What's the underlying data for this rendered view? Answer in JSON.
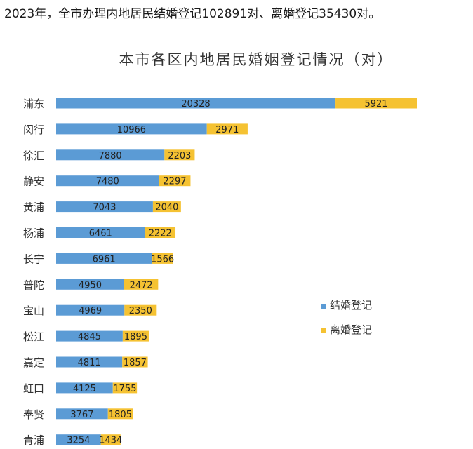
{
  "intro_text": "2023年，全市办理内地居民结婚登记102891对、离婚登记35430对。",
  "colors": {
    "marriage": "#5b9bd5",
    "divorce": "#f5c232",
    "text": "#333333"
  },
  "chart_data": {
    "type": "bar",
    "orientation": "horizontal",
    "stacked": true,
    "title": "本市各区内地居民婚姻登记情况（对）",
    "categories": [
      "浦东",
      "闵行",
      "徐汇",
      "静安",
      "黄浦",
      "杨浦",
      "长宁",
      "普陀",
      "宝山",
      "松江",
      "嘉定",
      "虹口",
      "奉贤",
      "青浦"
    ],
    "series": [
      {
        "name": "结婚登记",
        "color": "#5b9bd5",
        "values": [
          20328,
          10966,
          7880,
          7480,
          7043,
          6461,
          6961,
          4950,
          4969,
          4845,
          4811,
          4125,
          3767,
          3254
        ]
      },
      {
        "name": "离婚登记",
        "color": "#f5c232",
        "values": [
          5921,
          2971,
          2203,
          2297,
          2040,
          2222,
          1566,
          2472,
          2350,
          1895,
          1857,
          1755,
          1805,
          1434
        ]
      }
    ],
    "xlim": [
      0,
      26249
    ],
    "grid": false,
    "legend_position": "right",
    "data_labels": true
  }
}
